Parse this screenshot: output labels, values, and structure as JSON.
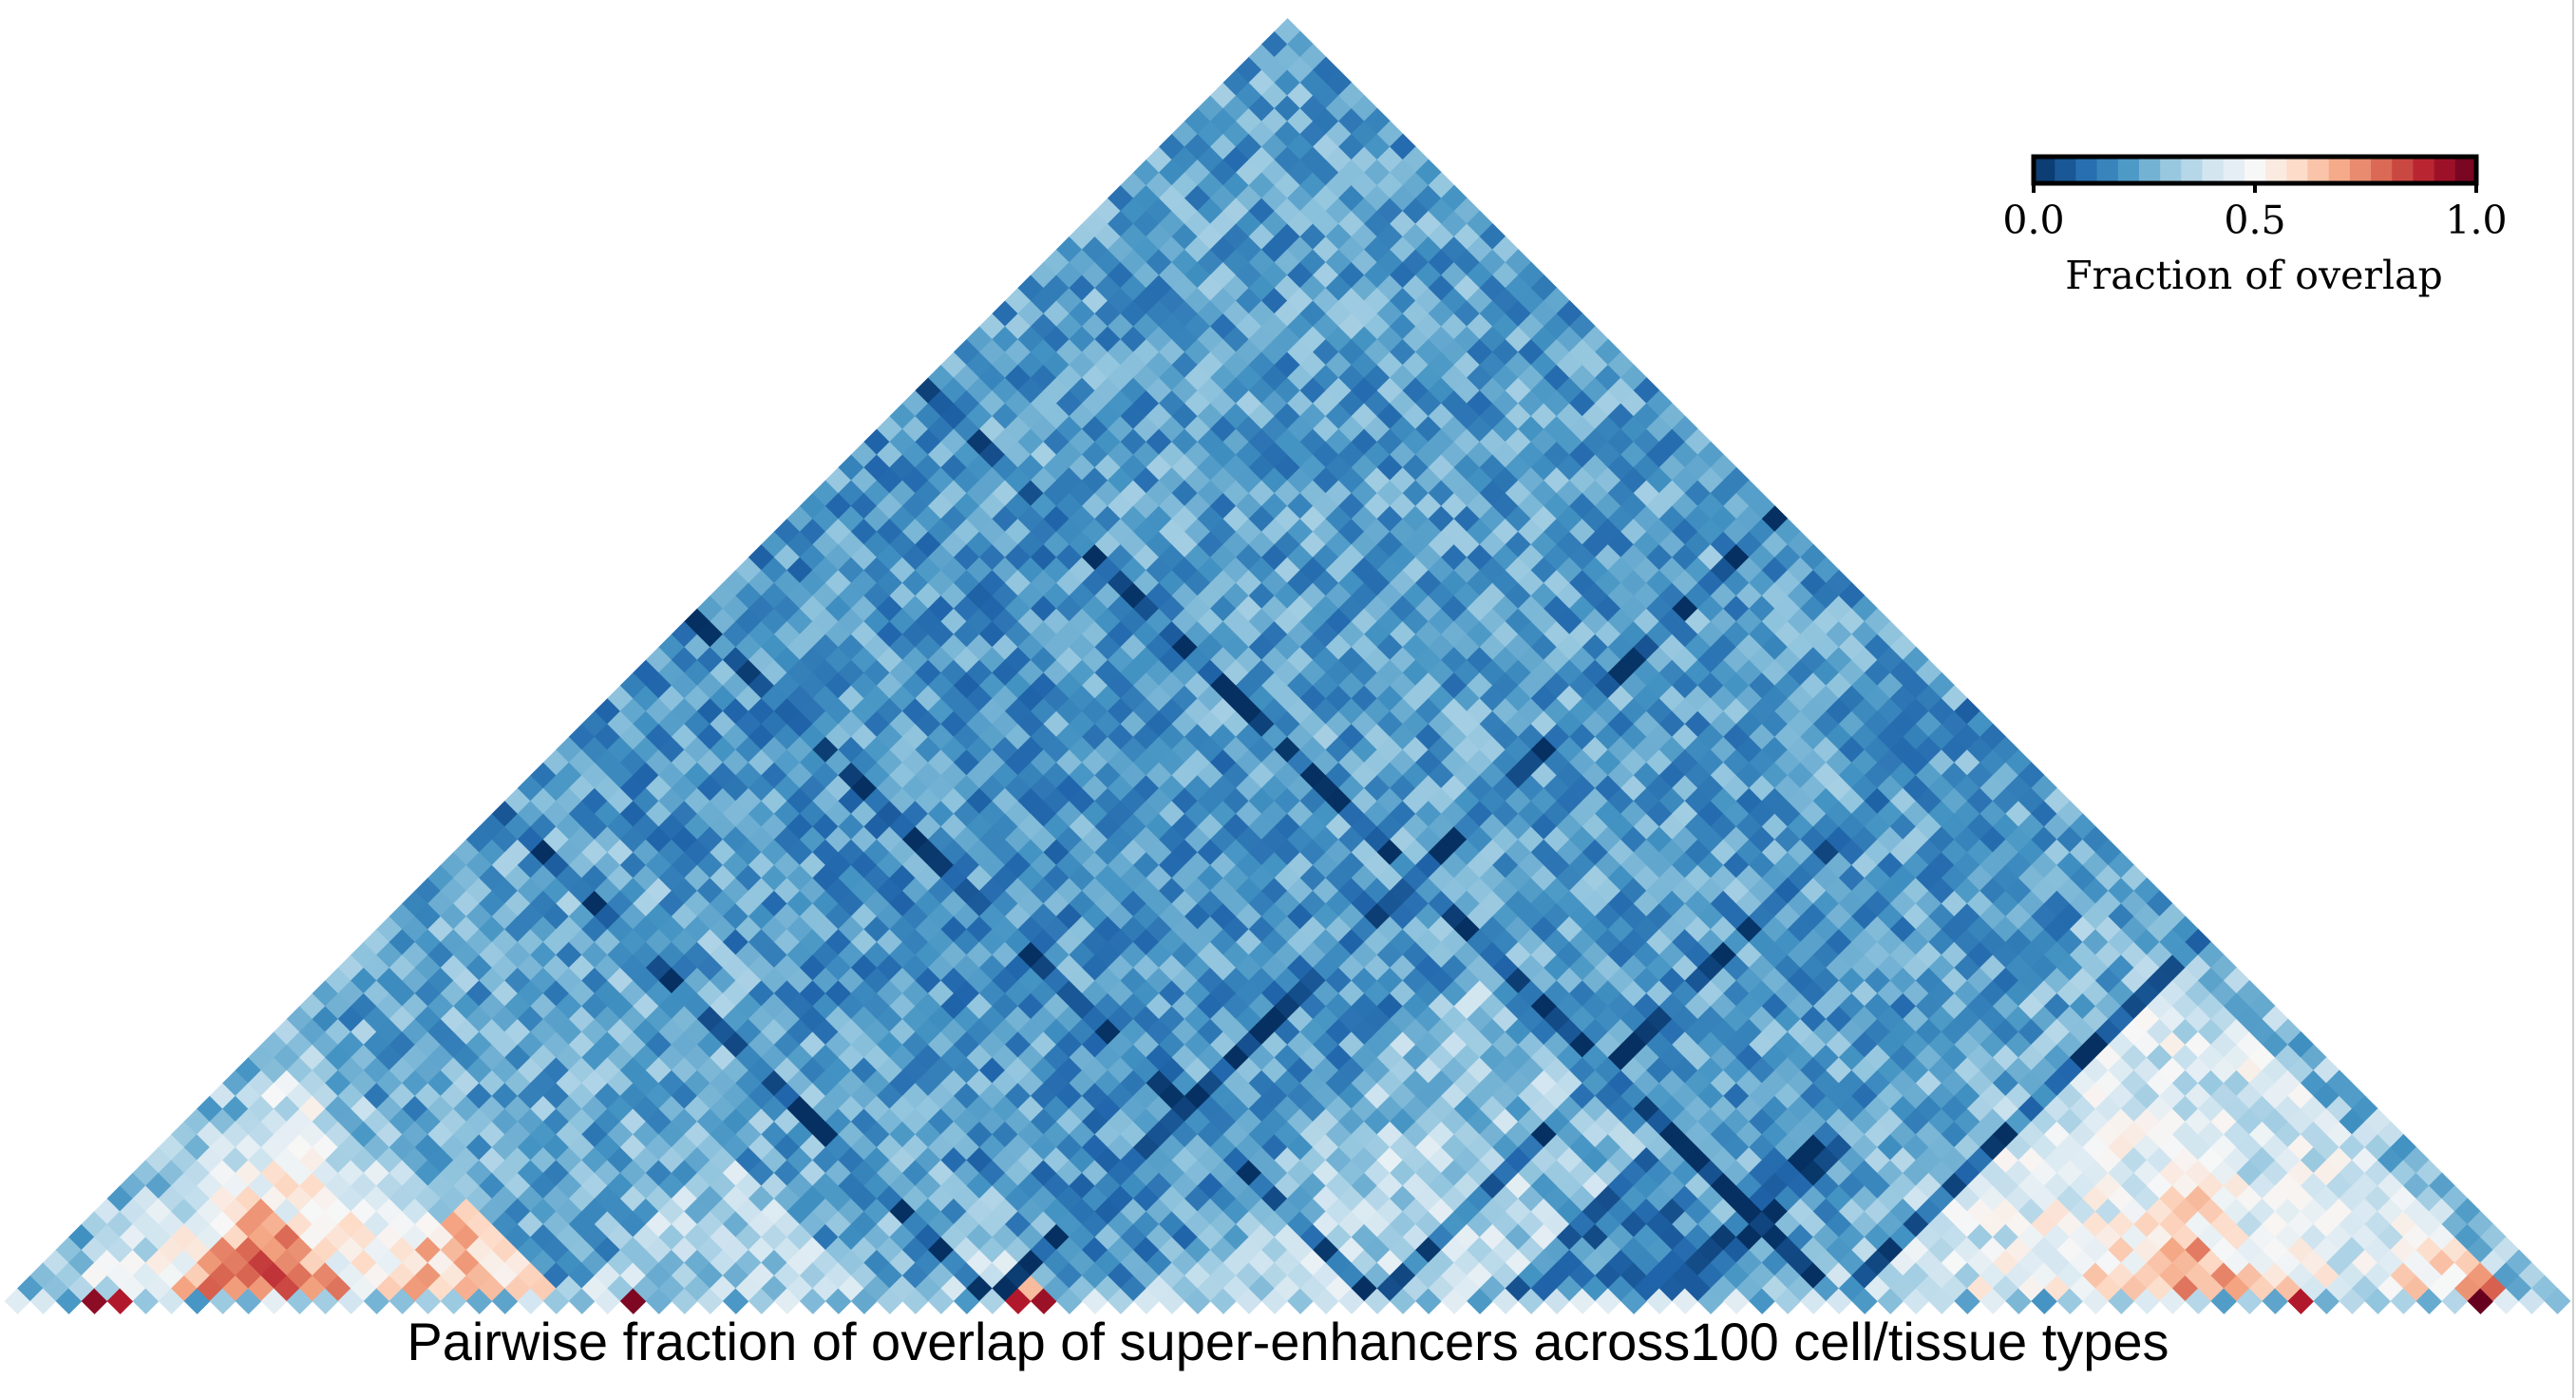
{
  "chart_data": {
    "type": "heatmap",
    "layout": "upper-triangle rotated 45 degrees",
    "title": "",
    "xlabel": "Pairwise fraction of overlap of super-enhancers across100 cell/tissue types",
    "n_types": 100,
    "value_range": [
      0.0,
      1.0
    ],
    "colormap": [
      "#053061",
      "#2166ac",
      "#4393c3",
      "#92c5de",
      "#d1e5f0",
      "#f7f7f7",
      "#fddbc7",
      "#f4a582",
      "#d6604d",
      "#b2182b",
      "#67001f"
    ],
    "colorbar": {
      "label": "Fraction of overlap",
      "ticks": [
        "0.0",
        "0.5",
        "1.0"
      ],
      "tick_values": [
        0.0,
        0.5,
        1.0
      ]
    },
    "blocks": [
      {
        "from": 0,
        "to": 100,
        "value": 0.22
      },
      {
        "from": 0,
        "to": 70,
        "value": 0.2
      },
      {
        "from": 0,
        "to": 42,
        "value": 0.24
      },
      {
        "from": 0,
        "to": 22,
        "value": 0.3
      },
      {
        "from": 2,
        "to": 20,
        "value": 0.42
      },
      {
        "from": 4,
        "to": 18,
        "value": 0.5
      },
      {
        "from": 6,
        "to": 14,
        "value": 0.7
      },
      {
        "from": 8,
        "to": 12,
        "value": 0.78
      },
      {
        "from": 14,
        "to": 22,
        "value": 0.62
      },
      {
        "from": 17,
        "to": 20,
        "value": 0.75
      },
      {
        "from": 22,
        "to": 34,
        "value": 0.34
      },
      {
        "from": 34,
        "to": 44,
        "value": 0.24
      },
      {
        "from": 35,
        "to": 41,
        "value": 0.36
      },
      {
        "from": 38,
        "to": 41,
        "value": 0.74
      },
      {
        "from": 44,
        "to": 70,
        "value": 0.3
      },
      {
        "from": 48,
        "to": 64,
        "value": 0.36
      },
      {
        "from": 58,
        "to": 70,
        "value": 0.16
      },
      {
        "from": 64,
        "to": 78,
        "value": 0.08
      },
      {
        "from": 66,
        "to": 100,
        "value": 0.25
      },
      {
        "from": 70,
        "to": 100,
        "value": 0.3
      },
      {
        "from": 72,
        "to": 98,
        "value": 0.42
      },
      {
        "from": 76,
        "to": 92,
        "value": 0.47
      },
      {
        "from": 80,
        "to": 90,
        "value": 0.56
      },
      {
        "from": 82,
        "to": 88,
        "value": 0.66
      },
      {
        "from": 92,
        "to": 98,
        "value": 0.55
      },
      {
        "from": 95,
        "to": 98,
        "value": 0.72
      }
    ],
    "dark_bands": [
      {
        "index": 38,
        "value": 0.05
      },
      {
        "index": 53,
        "value": 0.08
      },
      {
        "index": 71,
        "value": 0.06
      }
    ],
    "diagonal_highlights": [
      {
        "index": 3,
        "value": 0.95
      },
      {
        "index": 4,
        "value": 0.9
      },
      {
        "index": 24,
        "value": 0.97
      },
      {
        "index": 39,
        "value": 0.9
      },
      {
        "index": 40,
        "value": 0.93
      },
      {
        "index": 89,
        "value": 0.9
      },
      {
        "index": 96,
        "value": 1.0
      }
    ]
  }
}
